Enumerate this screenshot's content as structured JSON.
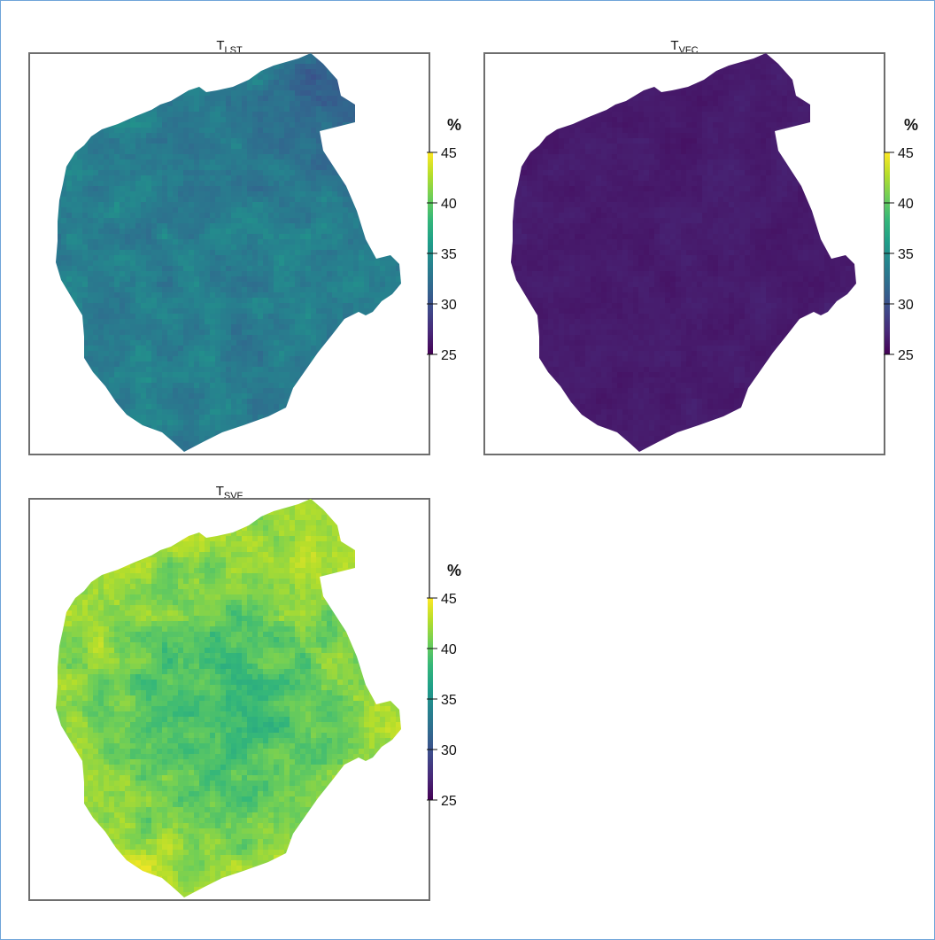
{
  "chart_data": [
    {
      "type": "heatmap",
      "title": {
        "main": "T",
        "sub": "LST"
      },
      "legend_title": "%",
      "scale": {
        "min": 25,
        "max": 45,
        "ticks": [
          45,
          40,
          35,
          30,
          25
        ]
      },
      "typical_value": 33.5,
      "value_spread": 1.4,
      "trend": "darker toward north-east (about 29-31)"
    },
    {
      "type": "heatmap",
      "title": {
        "main": "T",
        "sub": "VFC"
      },
      "legend_title": "%",
      "scale": {
        "min": 25,
        "max": 45,
        "ticks": [
          45,
          40,
          35,
          30,
          25
        ]
      },
      "typical_value": 26.5,
      "value_spread": 0.4,
      "trend": "nearly uniform (about 26-27)"
    },
    {
      "type": "heatmap",
      "title": {
        "main": "T",
        "sub": "SVF"
      },
      "legend_title": "%",
      "scale": {
        "min": 25,
        "max": 45,
        "ticks": [
          45,
          40,
          35,
          30,
          25
        ]
      },
      "typical_value": 40,
      "value_spread": 1.8,
      "trend": "higher at edges (about 42-43), lower in centre (about 37-38)"
    }
  ],
  "colormap": [
    "#440154",
    "#482878",
    "#3e4989",
    "#31688e",
    "#26828e",
    "#1f9e89",
    "#35b779",
    "#6ece58",
    "#b5de2b",
    "#fde725"
  ]
}
